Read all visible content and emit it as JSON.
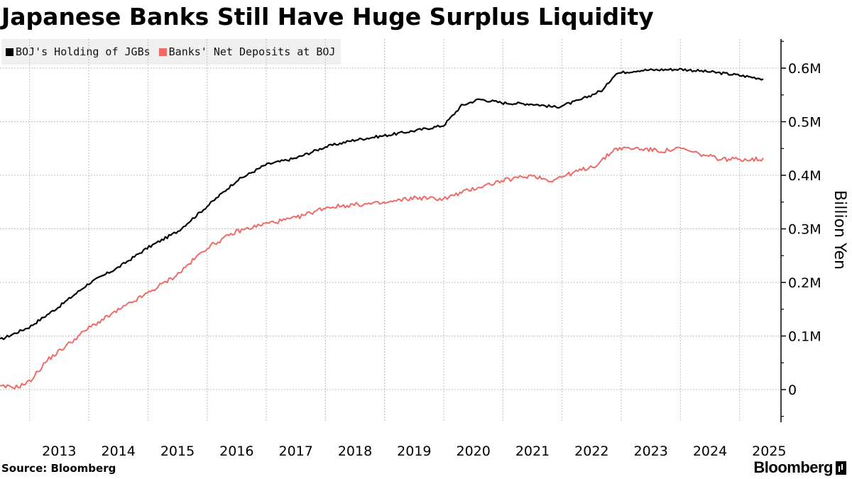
{
  "title": "Japanese Banks Still Have Huge Surplus Liquidity",
  "source": "Source: Bloomberg",
  "brand": "Bloomberg",
  "chart_data": {
    "type": "line",
    "ylabel": "Billion Yen",
    "ylim": [
      -60000,
      660000
    ],
    "yticks": [
      0,
      100000,
      200000,
      300000,
      400000,
      500000,
      600000
    ],
    "ytick_labels": [
      "0",
      "0.1M",
      "0.2M",
      "0.3M",
      "0.4M",
      "0.5M",
      "0.6M"
    ],
    "xlim": [
      2012.5,
      2025.7
    ],
    "xticks": [
      2013,
      2014,
      2015,
      2016,
      2017,
      2018,
      2019,
      2020,
      2021,
      2022,
      2023,
      2024,
      2025
    ],
    "xtick_labels": [
      "2013",
      "2014",
      "2015",
      "2016",
      "2017",
      "2018",
      "2019",
      "2020",
      "2021",
      "2022",
      "2023",
      "2024",
      "2025"
    ],
    "grid": true,
    "legend_position": "top-left",
    "series": [
      {
        "name": "BOJ's Holding of JGBs",
        "color": "#000000",
        "x": [
          2012.5,
          2013.0,
          2013.5,
          2014.0,
          2014.5,
          2015.0,
          2015.5,
          2016.0,
          2016.5,
          2017.0,
          2017.5,
          2018.0,
          2018.5,
          2019.0,
          2019.5,
          2020.0,
          2020.3,
          2020.6,
          2021.0,
          2021.5,
          2021.9,
          2022.3,
          2022.7,
          2022.9,
          2023.3,
          2023.7,
          2024.0,
          2024.5,
          2024.9,
          2025.4
        ],
        "y": [
          93000,
          117000,
          155000,
          198000,
          228000,
          265000,
          295000,
          342000,
          390000,
          420000,
          432000,
          453000,
          466000,
          474000,
          483000,
          493000,
          530000,
          542000,
          535000,
          533000,
          527000,
          540000,
          560000,
          590000,
          596000,
          597000,
          598000,
          593000,
          588000,
          580000
        ]
      },
      {
        "name": "Banks' Net Deposits at BOJ",
        "color": "#ef6b68",
        "x": [
          2012.5,
          2012.8,
          2013.0,
          2013.3,
          2013.6,
          2014.0,
          2014.5,
          2015.0,
          2015.5,
          2016.0,
          2016.5,
          2017.0,
          2017.5,
          2018.0,
          2018.5,
          2019.0,
          2019.5,
          2020.0,
          2020.5,
          2021.0,
          2021.5,
          2021.8,
          2022.2,
          2022.6,
          2022.9,
          2023.3,
          2023.7,
          2024.0,
          2024.3,
          2024.7,
          2025.2,
          2025.4
        ],
        "y": [
          5000,
          5000,
          15000,
          55000,
          80000,
          115000,
          148000,
          180000,
          215000,
          265000,
          295000,
          310000,
          320000,
          340000,
          345000,
          348000,
          358000,
          356000,
          375000,
          390000,
          400000,
          390000,
          405000,
          420000,
          450000,
          450000,
          445000,
          450000,
          440000,
          430000,
          430000,
          430000
        ]
      }
    ]
  }
}
